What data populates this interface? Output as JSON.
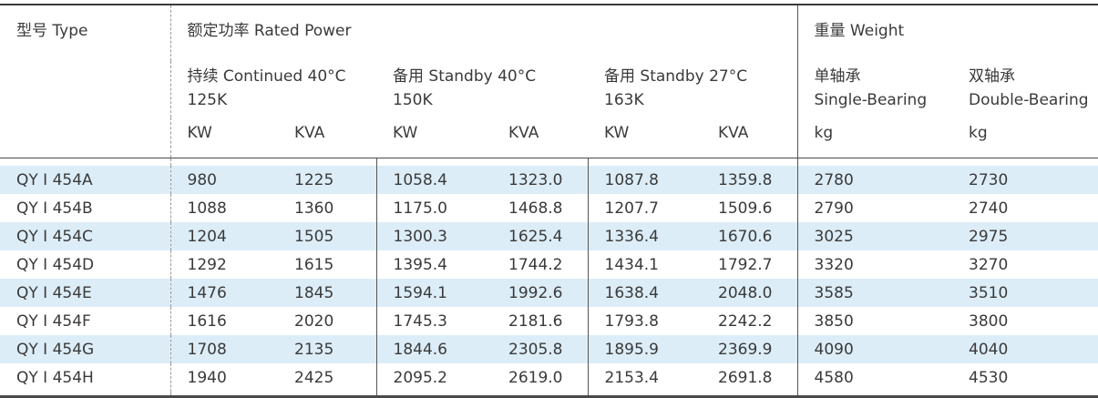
{
  "header": {
    "type_label": "型号 Type",
    "rated_power_label": "额定功率 Rated Power",
    "weight_label": "重量 Weight",
    "groups": [
      {
        "title": "持续 Continued 40°C",
        "subtitle": "125K",
        "unit_kw": "KW",
        "unit_kva": "KVA"
      },
      {
        "title": "备用 Standby 40°C",
        "subtitle": "150K",
        "unit_kw": "KW",
        "unit_kva": "KVA"
      },
      {
        "title": "备用 Standby 27°C",
        "subtitle": "163K",
        "unit_kw": "KW",
        "unit_kva": "KVA"
      }
    ],
    "weight_cols": [
      {
        "title": "单轴承",
        "subtitle": "Single-Bearing",
        "unit": "kg"
      },
      {
        "title": "双轴承",
        "subtitle": "Double-Bearing",
        "unit": "kg"
      }
    ]
  },
  "rows": [
    {
      "type": "QY Ⅰ 454A",
      "c": [
        "980",
        "1225",
        "1058.4",
        "1323.0",
        "1087.8",
        "1359.8",
        "2780",
        "2730"
      ]
    },
    {
      "type": "QY Ⅰ 454B",
      "c": [
        "1088",
        "1360",
        "1175.0",
        "1468.8",
        "1207.7",
        "1509.6",
        "2790",
        "2740"
      ]
    },
    {
      "type": "QY Ⅰ 454C",
      "c": [
        "1204",
        "1505",
        "1300.3",
        "1625.4",
        "1336.4",
        "1670.6",
        "3025",
        "2975"
      ]
    },
    {
      "type": "QY Ⅰ 454D",
      "c": [
        "1292",
        "1615",
        "1395.4",
        "1744.2",
        "1434.1",
        "1792.7",
        "3320",
        "3270"
      ]
    },
    {
      "type": "QY Ⅰ 454E",
      "c": [
        "1476",
        "1845",
        "1594.1",
        "1992.6",
        "1638.4",
        "2048.0",
        "3585",
        "3510"
      ]
    },
    {
      "type": "QY Ⅰ 454F",
      "c": [
        "1616",
        "2020",
        "1745.3",
        "2181.6",
        "1793.8",
        "2242.2",
        "3850",
        "3800"
      ]
    },
    {
      "type": "QY Ⅰ 454G",
      "c": [
        "1708",
        "2135",
        "1844.6",
        "2305.8",
        "1895.9",
        "2369.9",
        "4090",
        "4040"
      ]
    },
    {
      "type": "QY Ⅰ 454H",
      "c": [
        "1940",
        "2425",
        "2095.2",
        "2619.0",
        "2153.4",
        "2691.8",
        "4580",
        "4530"
      ]
    }
  ],
  "colors": {
    "row_highlight": "#dcedf8",
    "border_dark": "#3a3a3a",
    "text": "#3a3a3a"
  }
}
